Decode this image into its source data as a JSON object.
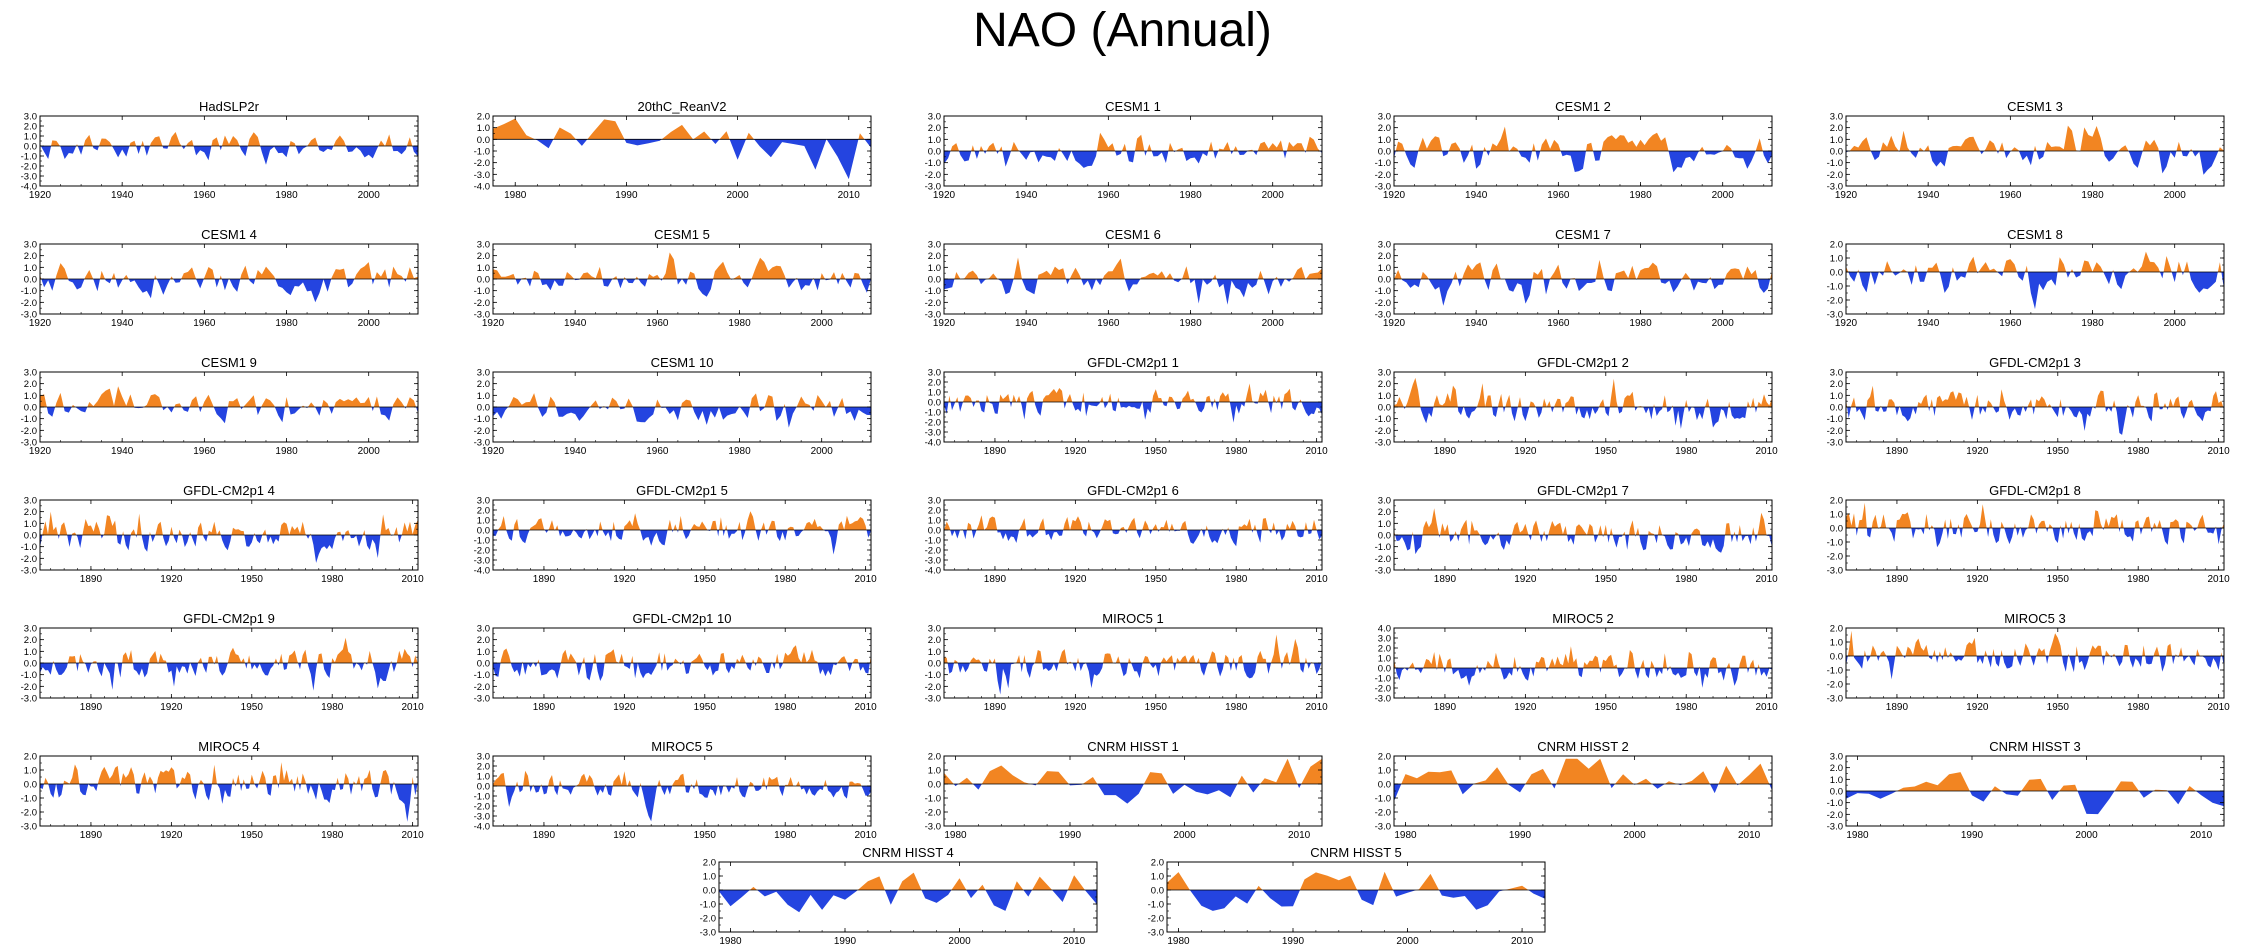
{
  "title": "NAO (Annual)",
  "colors": {
    "positive": "#f28522",
    "negative": "#2444e0",
    "axis": "#000000"
  },
  "chart_data": [
    {
      "type": "area",
      "title": "HadSLP2r",
      "x_start": 1920,
      "x_end": 2012,
      "ylim": [
        -4.0,
        3.0
      ],
      "yticks": [
        3.0,
        2.0,
        1.0,
        0.0,
        -1.0,
        -2.0,
        -3.0,
        -4.0
      ],
      "xticks": [
        1920,
        1940,
        1960,
        1980,
        2000
      ],
      "seed": 1,
      "amp": 1.2
    },
    {
      "type": "area",
      "title": "20thC_ReanV2",
      "x_start": 1978,
      "x_end": 2012,
      "ylim": [
        -4.0,
        2.0
      ],
      "yticks": [
        2.0,
        1.0,
        0.0,
        -1.0,
        -2.0,
        -3.0,
        -4.0
      ],
      "xticks": [
        1980,
        1990,
        2000,
        2010
      ],
      "seed": 2,
      "amp": 1.6
    },
    {
      "type": "area",
      "title": "CESM1 1",
      "x_start": 1920,
      "x_end": 2012,
      "ylim": [
        -3.0,
        3.0
      ],
      "yticks": [
        3.0,
        2.0,
        1.0,
        0.0,
        -1.0,
        -2.0,
        -3.0
      ],
      "xticks": [
        1920,
        1940,
        1960,
        1980,
        2000
      ],
      "seed": 3,
      "amp": 1.1
    },
    {
      "type": "area",
      "title": "CESM1 2",
      "x_start": 1920,
      "x_end": 2012,
      "ylim": [
        -3.0,
        3.0
      ],
      "yticks": [
        3.0,
        2.0,
        1.0,
        0.0,
        -1.0,
        -2.0,
        -3.0
      ],
      "xticks": [
        1920,
        1940,
        1960,
        1980,
        2000
      ],
      "seed": 4,
      "amp": 1.1
    },
    {
      "type": "area",
      "title": "CESM1 3",
      "x_start": 1920,
      "x_end": 2012,
      "ylim": [
        -3.0,
        3.0
      ],
      "yticks": [
        3.0,
        2.0,
        1.0,
        0.0,
        -1.0,
        -2.0,
        -3.0
      ],
      "xticks": [
        1920,
        1940,
        1960,
        1980,
        2000
      ],
      "seed": 5,
      "amp": 1.1
    },
    {
      "type": "area",
      "title": "CESM1 4",
      "x_start": 1920,
      "x_end": 2012,
      "ylim": [
        -3.0,
        3.0
      ],
      "yticks": [
        3.0,
        2.0,
        1.0,
        0.0,
        -1.0,
        -2.0,
        -3.0
      ],
      "xticks": [
        1920,
        1940,
        1960,
        1980,
        2000
      ],
      "seed": 6,
      "amp": 1.1
    },
    {
      "type": "area",
      "title": "CESM1 5",
      "x_start": 1920,
      "x_end": 2012,
      "ylim": [
        -3.0,
        3.0
      ],
      "yticks": [
        3.0,
        2.0,
        1.0,
        0.0,
        -1.0,
        -2.0,
        -3.0
      ],
      "xticks": [
        1920,
        1940,
        1960,
        1980,
        2000
      ],
      "seed": 7,
      "amp": 1.1
    },
    {
      "type": "area",
      "title": "CESM1 6",
      "x_start": 1920,
      "x_end": 2012,
      "ylim": [
        -3.0,
        3.0
      ],
      "yticks": [
        3.0,
        2.0,
        1.0,
        0.0,
        -1.0,
        -2.0,
        -3.0
      ],
      "xticks": [
        1920,
        1940,
        1960,
        1980,
        2000
      ],
      "seed": 8,
      "amp": 1.1
    },
    {
      "type": "area",
      "title": "CESM1 7",
      "x_start": 1920,
      "x_end": 2012,
      "ylim": [
        -3.0,
        3.0
      ],
      "yticks": [
        3.0,
        2.0,
        1.0,
        0.0,
        -1.0,
        -2.0,
        -3.0
      ],
      "xticks": [
        1920,
        1940,
        1960,
        1980,
        2000
      ],
      "seed": 9,
      "amp": 1.1
    },
    {
      "type": "area",
      "title": "CESM1 8",
      "x_start": 1920,
      "x_end": 2012,
      "ylim": [
        -3.0,
        2.0
      ],
      "yticks": [
        2.0,
        1.0,
        0.0,
        -1.0,
        -2.0,
        -3.0
      ],
      "xticks": [
        1920,
        1940,
        1960,
        1980,
        2000
      ],
      "seed": 10,
      "amp": 1.0
    },
    {
      "type": "area",
      "title": "CESM1 9",
      "x_start": 1920,
      "x_end": 2012,
      "ylim": [
        -3.0,
        3.0
      ],
      "yticks": [
        3.0,
        2.0,
        1.0,
        0.0,
        -1.0,
        -2.0,
        -3.0
      ],
      "xticks": [
        1920,
        1940,
        1960,
        1980,
        2000
      ],
      "seed": 11,
      "amp": 1.1
    },
    {
      "type": "area",
      "title": "CESM1 10",
      "x_start": 1920,
      "x_end": 2012,
      "ylim": [
        -3.0,
        3.0
      ],
      "yticks": [
        3.0,
        2.0,
        1.0,
        0.0,
        -1.0,
        -2.0,
        -3.0
      ],
      "xticks": [
        1920,
        1940,
        1960,
        1980,
        2000
      ],
      "seed": 12,
      "amp": 1.1
    },
    {
      "type": "area",
      "title": "GFDL-CM2p1 1",
      "x_start": 1871,
      "x_end": 2012,
      "ylim": [
        -4.0,
        3.0
      ],
      "yticks": [
        3.0,
        2.0,
        1.0,
        0.0,
        -1.0,
        -2.0,
        -3.0,
        -4.0
      ],
      "xticks": [
        1890,
        1920,
        1950,
        1980,
        2010
      ],
      "seed": 13,
      "amp": 1.1
    },
    {
      "type": "area",
      "title": "GFDL-CM2p1 2",
      "x_start": 1871,
      "x_end": 2012,
      "ylim": [
        -3.0,
        3.0
      ],
      "yticks": [
        3.0,
        2.0,
        1.0,
        0.0,
        -1.0,
        -2.0,
        -3.0
      ],
      "xticks": [
        1890,
        1920,
        1950,
        1980,
        2010
      ],
      "seed": 14,
      "amp": 1.1
    },
    {
      "type": "area",
      "title": "GFDL-CM2p1 3",
      "x_start": 1871,
      "x_end": 2012,
      "ylim": [
        -3.0,
        3.0
      ],
      "yticks": [
        3.0,
        2.0,
        1.0,
        0.0,
        -1.0,
        -2.0,
        -3.0
      ],
      "xticks": [
        1890,
        1920,
        1950,
        1980,
        2010
      ],
      "seed": 15,
      "amp": 1.1
    },
    {
      "type": "area",
      "title": "GFDL-CM2p1 4",
      "x_start": 1871,
      "x_end": 2012,
      "ylim": [
        -3.0,
        3.0
      ],
      "yticks": [
        3.0,
        2.0,
        1.0,
        0.0,
        -1.0,
        -2.0,
        -3.0
      ],
      "xticks": [
        1890,
        1920,
        1950,
        1980,
        2010
      ],
      "seed": 16,
      "amp": 1.1
    },
    {
      "type": "area",
      "title": "GFDL-CM2p1 5",
      "x_start": 1871,
      "x_end": 2012,
      "ylim": [
        -4.0,
        3.0
      ],
      "yticks": [
        3.0,
        2.0,
        1.0,
        0.0,
        -1.0,
        -2.0,
        -3.0,
        -4.0
      ],
      "xticks": [
        1890,
        1920,
        1950,
        1980,
        2010
      ],
      "seed": 17,
      "amp": 1.1
    },
    {
      "type": "area",
      "title": "GFDL-CM2p1 6",
      "x_start": 1871,
      "x_end": 2012,
      "ylim": [
        -4.0,
        3.0
      ],
      "yticks": [
        3.0,
        2.0,
        1.0,
        0.0,
        -1.0,
        -2.0,
        -3.0,
        -4.0
      ],
      "xticks": [
        1890,
        1920,
        1950,
        1980,
        2010
      ],
      "seed": 18,
      "amp": 1.1
    },
    {
      "type": "area",
      "title": "GFDL-CM2p1 7",
      "x_start": 1871,
      "x_end": 2012,
      "ylim": [
        -3.0,
        3.0
      ],
      "yticks": [
        3.0,
        2.0,
        1.0,
        0.0,
        -1.0,
        -2.0,
        -3.0
      ],
      "xticks": [
        1890,
        1920,
        1950,
        1980,
        2010
      ],
      "seed": 19,
      "amp": 1.1
    },
    {
      "type": "area",
      "title": "GFDL-CM2p1 8",
      "x_start": 1871,
      "x_end": 2012,
      "ylim": [
        -3.0,
        2.0
      ],
      "yticks": [
        2.0,
        1.0,
        0.0,
        -1.0,
        -2.0,
        -3.0
      ],
      "xticks": [
        1890,
        1920,
        1950,
        1980,
        2010
      ],
      "seed": 20,
      "amp": 1.0
    },
    {
      "type": "area",
      "title": "GFDL-CM2p1 9",
      "x_start": 1871,
      "x_end": 2012,
      "ylim": [
        -3.0,
        3.0
      ],
      "yticks": [
        3.0,
        2.0,
        1.0,
        0.0,
        -1.0,
        -2.0,
        -3.0
      ],
      "xticks": [
        1890,
        1920,
        1950,
        1980,
        2010
      ],
      "seed": 21,
      "amp": 1.1
    },
    {
      "type": "area",
      "title": "GFDL-CM2p1 10",
      "x_start": 1871,
      "x_end": 2012,
      "ylim": [
        -3.0,
        3.0
      ],
      "yticks": [
        3.0,
        2.0,
        1.0,
        0.0,
        -1.0,
        -2.0,
        -3.0
      ],
      "xticks": [
        1890,
        1920,
        1950,
        1980,
        2010
      ],
      "seed": 22,
      "amp": 1.1
    },
    {
      "type": "area",
      "title": "MIROC5 1",
      "x_start": 1871,
      "x_end": 2012,
      "ylim": [
        -3.0,
        3.0
      ],
      "yticks": [
        3.0,
        2.0,
        1.0,
        0.0,
        -1.0,
        -2.0,
        -3.0
      ],
      "xticks": [
        1890,
        1920,
        1950,
        1980,
        2010
      ],
      "seed": 23,
      "amp": 1.1
    },
    {
      "type": "area",
      "title": "MIROC5 2",
      "x_start": 1871,
      "x_end": 2012,
      "ylim": [
        -3.0,
        4.0
      ],
      "yticks": [
        4.0,
        3.0,
        2.0,
        1.0,
        0.0,
        -1.0,
        -2.0,
        -3.0
      ],
      "xticks": [
        1890,
        1920,
        1950,
        1980,
        2010
      ],
      "seed": 24,
      "amp": 1.1
    },
    {
      "type": "area",
      "title": "MIROC5 3",
      "x_start": 1871,
      "x_end": 2012,
      "ylim": [
        -3.0,
        2.0
      ],
      "yticks": [
        2.0,
        1.0,
        0.0,
        -1.0,
        -2.0,
        -3.0
      ],
      "xticks": [
        1890,
        1920,
        1950,
        1980,
        2010
      ],
      "seed": 25,
      "amp": 1.0
    },
    {
      "type": "area",
      "title": "MIROC5 4",
      "x_start": 1871,
      "x_end": 2012,
      "ylim": [
        -3.0,
        2.0
      ],
      "yticks": [
        2.0,
        1.0,
        0.0,
        -1.0,
        -2.0,
        -3.0
      ],
      "xticks": [
        1890,
        1920,
        1950,
        1980,
        2010
      ],
      "seed": 26,
      "amp": 1.0
    },
    {
      "type": "area",
      "title": "MIROC5 5",
      "x_start": 1871,
      "x_end": 2012,
      "ylim": [
        -4.0,
        3.0
      ],
      "yticks": [
        3.0,
        2.0,
        1.0,
        0.0,
        -1.0,
        -2.0,
        -3.0,
        -4.0
      ],
      "xticks": [
        1890,
        1920,
        1950,
        1980,
        2010
      ],
      "seed": 27,
      "amp": 1.0
    },
    {
      "type": "area",
      "title": "CNRM HISST 1",
      "x_start": 1979,
      "x_end": 2012,
      "ylim": [
        -3.0,
        2.0
      ],
      "yticks": [
        2.0,
        1.0,
        0.0,
        -1.0,
        -2.0,
        -3.0
      ],
      "xticks": [
        1980,
        1990,
        2000,
        2010
      ],
      "seed": 28,
      "amp": 1.3
    },
    {
      "type": "area",
      "title": "CNRM HISST 2",
      "x_start": 1979,
      "x_end": 2012,
      "ylim": [
        -3.0,
        2.0
      ],
      "yticks": [
        2.0,
        1.0,
        0.0,
        -1.0,
        -2.0,
        -3.0
      ],
      "xticks": [
        1980,
        1990,
        2000,
        2010
      ],
      "seed": 29,
      "amp": 1.3
    },
    {
      "type": "area",
      "title": "CNRM HISST 3",
      "x_start": 1979,
      "x_end": 2012,
      "ylim": [
        -3.0,
        3.0
      ],
      "yticks": [
        3.0,
        2.0,
        1.0,
        0.0,
        -1.0,
        -2.0,
        -3.0
      ],
      "xticks": [
        1980,
        1990,
        2000,
        2010
      ],
      "seed": 30,
      "amp": 1.3
    },
    {
      "type": "area",
      "title": "CNRM HISST 4",
      "x_start": 1979,
      "x_end": 2012,
      "ylim": [
        -3.0,
        2.0
      ],
      "yticks": [
        2.0,
        1.0,
        0.0,
        -1.0,
        -2.0,
        -3.0
      ],
      "xticks": [
        1980,
        1990,
        2000,
        2010
      ],
      "seed": 31,
      "amp": 1.4
    },
    {
      "type": "area",
      "title": "CNRM HISST 5",
      "x_start": 1979,
      "x_end": 2012,
      "ylim": [
        -3.0,
        2.0
      ],
      "yticks": [
        2.0,
        1.0,
        0.0,
        -1.0,
        -2.0,
        -3.0
      ],
      "xticks": [
        1980,
        1990,
        2000,
        2010
      ],
      "seed": 32,
      "amp": 1.4
    }
  ]
}
